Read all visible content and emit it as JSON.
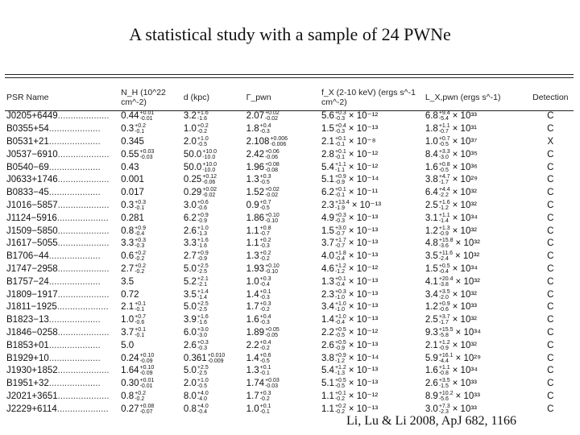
{
  "slide": {
    "title": "A statistical study with a sample of 24 PWNe",
    "citation": "Li, Lu & Li 2008, ApJ 682, 1166"
  },
  "table": {
    "headers": {
      "psr": "PSR Name",
      "nh": "N_H (10^22 cm^-2)",
      "d": "d (kpc)",
      "gamma": "Γ_pwn",
      "fx": "f_X (2-10 keV) (ergs s^-1 cm^-2)",
      "lx": "L_X,pwn (ergs s^-1)",
      "det": "Detection"
    },
    "rows": [
      {
        "psr": "J0205+6449",
        "nh": "0.44",
        "nh_hi": "+0.01",
        "nh_lo": "-0.01",
        "d": "3.2",
        "d_hi": "+1.6",
        "d_lo": "-1.6",
        "g": "2.07",
        "g_hi": "+0.02",
        "g_lo": "-0.02",
        "fx": "5.6",
        "fx_hi": "+0.3",
        "fx_lo": "-0.3",
        "fx_exp": "× 10⁻¹²",
        "lx": "6.8",
        "lx_hi": "+9.4",
        "lx_lo": "-5.4",
        "lx_exp": "× 10³³",
        "det": "C"
      },
      {
        "psr": "B0355+54",
        "nh": "0.3",
        "nh_hi": "+0.2",
        "nh_lo": "-0.1",
        "d": "1.0",
        "d_hi": "+0.2",
        "d_lo": "-0.2",
        "g": "1.8",
        "g_hi": "+0.4",
        "g_lo": "-0.3",
        "fx": "1.5",
        "fx_hi": "+0.4",
        "fx_lo": "-0.3",
        "fx_exp": "× 10⁻¹³",
        "lx": "1.8",
        "lx_hi": "+1.1",
        "lx_lo": "-0.7",
        "lx_exp": "× 10³¹",
        "det": "C"
      },
      {
        "psr": "B0531+21",
        "nh": "0.345",
        "nh_hi": "",
        "nh_lo": "",
        "d": "2.0",
        "d_hi": "+1.0",
        "d_lo": "-0.5",
        "g": "2.108",
        "g_hi": "+0.006",
        "g_lo": "-0.006",
        "fx": "2.1",
        "fx_hi": "+0.1",
        "fx_lo": "-0.1",
        "fx_exp": "× 10⁻⁸",
        "lx": "1.0",
        "lx_hi": "+0.7",
        "lx_lo": "-0.5",
        "lx_exp": "× 10³⁷",
        "det": "X"
      },
      {
        "psr": "J0537−6910",
        "nh": "0.55",
        "nh_hi": "+0.03",
        "nh_lo": "-0.03",
        "d": "50.0",
        "d_hi": "+10.0",
        "d_lo": "-10.0",
        "g": "2.42",
        "g_hi": "+0.06",
        "g_lo": "-0.06",
        "fx": "2.8",
        "fx_hi": "+0.1",
        "fx_lo": "-0.1",
        "fx_exp": "× 10⁻¹²",
        "lx": "8.4",
        "lx_hi": "+3.3",
        "lx_lo": "-3.0",
        "lx_exp": "× 10³⁵",
        "det": "C"
      },
      {
        "psr": "B0540−69",
        "nh": "0.43",
        "nh_hi": "",
        "nh_lo": "",
        "d": "50.0",
        "d_hi": "+10.0",
        "d_lo": "-10.0",
        "g": "1.96",
        "g_hi": "+0.08",
        "g_lo": "-0.08",
        "fx": "5.4",
        "fx_hi": "+1.1",
        "fx_lo": "-1.1",
        "fx_exp": "× 10⁻¹²",
        "lx": "1.6",
        "lx_hi": "+0.8",
        "lx_lo": "-0.5",
        "lx_exp": "× 10³⁶",
        "det": "C"
      },
      {
        "psr": "J0633+1746",
        "nh": "0.001",
        "nh_hi": "",
        "nh_lo": "",
        "d": "0.25",
        "d_hi": "+0.12",
        "d_lo": "-0.06",
        "g": "1.3",
        "g_hi": "+0.3",
        "g_lo": "-0.5",
        "fx": "5.1",
        "fx_hi": "+0.9",
        "fx_lo": "-0.9",
        "fx_exp": "× 10⁻¹⁴",
        "lx": "3.8",
        "lx_hi": "+4.7",
        "lx_lo": "-1.7",
        "lx_exp": "× 10²⁹",
        "det": "C"
      },
      {
        "psr": "B0833−45",
        "nh": "0.017",
        "nh_hi": "",
        "nh_lo": "",
        "d": "0.29",
        "d_hi": "+0.02",
        "d_lo": "-0.02",
        "g": "1.52",
        "g_hi": "+0.02",
        "g_lo": "-0.02",
        "fx": "6.2",
        "fx_hi": "+0.1",
        "fx_lo": "-0.1",
        "fx_exp": "× 10⁻¹¹",
        "lx": "6.4",
        "lx_hi": "+4.4",
        "lx_lo": "-2.2",
        "lx_exp": "× 10³²",
        "det": "C"
      },
      {
        "psr": "J1016−5857",
        "nh": "0.3",
        "nh_hi": "+0.3",
        "nh_lo": "-0.1",
        "d": "3.0",
        "d_hi": "+0.6",
        "d_lo": "-0.6",
        "g": "0.9",
        "g_hi": "+0.7",
        "g_lo": "-0.5",
        "fx": "2.3",
        "fx_hi": "+13.4",
        "fx_lo": "-1.9",
        "fx_exp": "× 10⁻¹³",
        "lx": "2.5",
        "lx_hi": "+1.6",
        "lx_lo": "-1.2",
        "lx_exp": "× 10³²",
        "det": "C"
      },
      {
        "psr": "J1124−5916",
        "nh": "0.281",
        "nh_hi": "",
        "nh_lo": "",
        "d": "6.2",
        "d_hi": "+0.9",
        "d_lo": "-0.9",
        "g": "1.86",
        "g_hi": "+0.10",
        "g_lo": "-0.10",
        "fx": "4.9",
        "fx_hi": "+0.3",
        "fx_lo": "-0.3",
        "fx_exp": "× 10⁻¹³",
        "lx": "3.1",
        "lx_hi": "+1.1",
        "lx_lo": "-1.4",
        "lx_exp": "× 10³⁴",
        "det": "C"
      },
      {
        "psr": "J1509−5850",
        "nh": "0.8",
        "nh_hi": "+0.9",
        "nh_lo": "-0.4",
        "d": "2.6",
        "d_hi": "+1.0",
        "d_lo": "-1.3",
        "g": "1.1",
        "g_hi": "+0.8",
        "g_lo": "-0.7",
        "fx": "1.5",
        "fx_hi": "+3.0",
        "fx_lo": "-0.7",
        "fx_exp": "× 10⁻¹³",
        "lx": "1.2",
        "lx_hi": "+1.3",
        "lx_lo": "-0.9",
        "lx_exp": "× 10³²",
        "det": "C"
      },
      {
        "psr": "J1617−5055",
        "nh": "3.3",
        "nh_hi": "+0.3",
        "nh_lo": "-0.3",
        "d": "3.3",
        "d_hi": "+1.6",
        "d_lo": "-1.6",
        "g": "1.1",
        "g_hi": "+0.2",
        "g_lo": "-0.3",
        "fx": "3.7",
        "fx_hi": "+1.7",
        "fx_lo": "-0.7",
        "fx_exp": "× 10⁻¹³",
        "lx": "4.8",
        "lx_hi": "+15.8",
        "lx_lo": "-3.6",
        "lx_exp": "× 10³²",
        "det": "C"
      },
      {
        "psr": "B1706−44",
        "nh": "0.6",
        "nh_hi": "+0.2",
        "nh_lo": "-0.2",
        "d": "2.7",
        "d_hi": "+0.9",
        "d_lo": "-0.9",
        "g": "1.3",
        "g_hi": "+0.2",
        "g_lo": "-0.2",
        "fx": "4.0",
        "fx_hi": "+1.8",
        "fx_lo": "-0.4",
        "fx_exp": "× 10⁻¹³",
        "lx": "3.5",
        "lx_hi": "+11.6",
        "lx_lo": "-2.4",
        "lx_exp": "× 10³²",
        "det": "C"
      },
      {
        "psr": "J1747−2958",
        "nh": "2.7",
        "nh_hi": "+0.2",
        "nh_lo": "-0.2",
        "d": "5.0",
        "d_hi": "+2.5",
        "d_lo": "-2.5",
        "g": "1.93",
        "g_hi": "+0.10",
        "g_lo": "-0.10",
        "fx": "4.6",
        "fx_hi": "+1.2",
        "fx_lo": "-1.2",
        "fx_exp": "× 10⁻¹²",
        "lx": "1.5",
        "lx_hi": "+0.5",
        "lx_lo": "-0.4",
        "lx_exp": "× 10³⁴",
        "det": "C"
      },
      {
        "psr": "B1757−24",
        "nh": "3.5",
        "nh_hi": "",
        "nh_lo": "",
        "d": "5.2",
        "d_hi": "+2.1",
        "d_lo": "-2.1",
        "g": "1.0",
        "g_hi": "+0.3",
        "g_lo": "-0.4",
        "fx": "1.3",
        "fx_hi": "+0.1",
        "fx_lo": "-0.4",
        "fx_exp": "× 10⁻¹³",
        "lx": "4.1",
        "lx_hi": "+20.4",
        "lx_lo": "-3.8",
        "lx_exp": "× 10³²",
        "det": "C"
      },
      {
        "psr": "J1809−1917",
        "nh": "0.72",
        "nh_hi": "",
        "nh_lo": "",
        "d": "3.5",
        "d_hi": "+1.4",
        "d_lo": "-1.4",
        "g": "1.4",
        "g_hi": "+0.1",
        "g_lo": "-0.3",
        "fx": "2.3",
        "fx_hi": "+0.3",
        "fx_lo": "-1.0",
        "fx_exp": "× 10⁻¹³",
        "lx": "3.4",
        "lx_hi": "+3.5",
        "lx_lo": "-2.0",
        "lx_exp": "× 10³²",
        "det": "C"
      },
      {
        "psr": "J1811−1925",
        "nh": "2.1",
        "nh_hi": "+0.1",
        "nh_lo": "-0.1",
        "d": "5.0",
        "d_hi": "+2.5",
        "d_lo": "-2.5",
        "g": "1.7",
        "g_hi": "+0.3",
        "g_lo": "-0.2",
        "fx": "3.4",
        "fx_hi": "+1.0",
        "fx_lo": "-1.0",
        "fx_exp": "× 10⁻¹³",
        "lx": "1.2",
        "lx_hi": "+0.9",
        "lx_lo": "-0.6",
        "lx_exp": "× 10³³",
        "det": "C"
      },
      {
        "psr": "B1823−13",
        "nh": "1.0",
        "nh_hi": "+0.7",
        "nh_lo": "-0.6",
        "d": "3.9",
        "d_hi": "+1.6",
        "d_lo": "-1.6",
        "g": "1.6",
        "g_hi": "+0.4",
        "g_lo": "-0.3",
        "fx": "1.4",
        "fx_hi": "+1.0",
        "fx_lo": "-0.4",
        "fx_exp": "× 10⁻¹³",
        "lx": "2.5",
        "lx_hi": "+3.7",
        "lx_lo": "-1.7",
        "lx_exp": "× 10³²",
        "det": "C"
      },
      {
        "psr": "J1846−0258",
        "nh": "3.7",
        "nh_hi": "+0.1",
        "nh_lo": "-0.1",
        "d": "6.0",
        "d_hi": "+3.0",
        "d_lo": "-3.0",
        "g": "1.89",
        "g_hi": "+0.05",
        "g_lo": "-0.05",
        "fx": "2.2",
        "fx_hi": "+0.5",
        "fx_lo": "-0.5",
        "fx_exp": "× 10⁻¹²",
        "lx": "9.3",
        "lx_hi": "+15.5",
        "lx_lo": "-5.8",
        "lx_exp": "× 10³⁴",
        "det": "C"
      },
      {
        "psr": "B1853+01",
        "nh": "5.0",
        "nh_hi": "",
        "nh_lo": "",
        "d": "2.6",
        "d_hi": "+0.3",
        "d_lo": "-0.3",
        "g": "2.2",
        "g_hi": "+0.4",
        "g_lo": "-0.2",
        "fx": "2.6",
        "fx_hi": "+0.5",
        "fx_lo": "-0.9",
        "fx_exp": "× 10⁻¹³",
        "lx": "2.1",
        "lx_hi": "+1.2",
        "lx_lo": "-0.9",
        "lx_exp": "× 10³²",
        "det": "C"
      },
      {
        "psr": "B1929+10",
        "nh": "0.24",
        "nh_hi": "+0.10",
        "nh_lo": "-0.09",
        "d": "0.361",
        "d_hi": "+0.010",
        "d_lo": "-0.009",
        "g": "1.4",
        "g_hi": "+0.6",
        "g_lo": "-0.5",
        "fx": "3.8",
        "fx_hi": "+0.9",
        "fx_lo": "-1.2",
        "fx_exp": "× 10⁻¹⁴",
        "lx": "5.9",
        "lx_hi": "+16.1",
        "lx_lo": "-4.4",
        "lx_exp": "× 10²⁹",
        "det": "C"
      },
      {
        "psr": "J1930+1852",
        "nh": "1.64",
        "nh_hi": "+0.10",
        "nh_lo": "-0.09",
        "d": "5.0",
        "d_hi": "+2.5",
        "d_lo": "-2.5",
        "g": "1.3",
        "g_hi": "+0.1",
        "g_lo": "-0.1",
        "fx": "5.4",
        "fx_hi": "+1.2",
        "fx_lo": "-1.3",
        "fx_exp": "× 10⁻¹³",
        "lx": "1.6",
        "lx_hi": "+1.1",
        "lx_lo": "-0.8",
        "lx_exp": "× 10³⁴",
        "det": "C"
      },
      {
        "psr": "B1951+32",
        "nh": "0.30",
        "nh_hi": "+0.01",
        "nh_lo": "-0.01",
        "d": "2.0",
        "d_hi": "+1.0",
        "d_lo": "-0.5",
        "g": "1.74",
        "g_hi": "+0.03",
        "g_lo": "-0.03",
        "fx": "5.1",
        "fx_hi": "+0.5",
        "fx_lo": "-0.5",
        "fx_exp": "× 10⁻¹³",
        "lx": "2.6",
        "lx_hi": "+3.5",
        "lx_lo": "-1.5",
        "lx_exp": "× 10³³",
        "det": "C"
      },
      {
        "psr": "J2021+3651",
        "nh": "0.8",
        "nh_hi": "+0.2",
        "nh_lo": "-0.2",
        "d": "8.0",
        "d_hi": "+4.0",
        "d_lo": "-4.0",
        "g": "1.7",
        "g_hi": "+0.3",
        "g_lo": "-0.2",
        "fx": "1.1",
        "fx_hi": "+0.1",
        "fx_lo": "-0.2",
        "fx_exp": "× 10⁻¹²",
        "lx": "8.9",
        "lx_hi": "+10.2",
        "lx_lo": "-5.6",
        "lx_exp": "× 10³³",
        "det": "C"
      },
      {
        "psr": "J2229+6114",
        "nh": "0.27",
        "nh_hi": "+0.08",
        "nh_lo": "-0.07",
        "d": "0.8",
        "d_hi": "+4.0",
        "d_lo": "-0.4",
        "g": "1.0",
        "g_hi": "+0.1",
        "g_lo": "-0.1",
        "fx": "1.1",
        "fx_hi": "+0.2",
        "fx_lo": "-0.2",
        "fx_exp": "× 10⁻¹³",
        "lx": "3.0",
        "lx_hi": "+7.3",
        "lx_lo": "-2.3",
        "lx_exp": "× 10³³",
        "det": "C"
      }
    ]
  }
}
